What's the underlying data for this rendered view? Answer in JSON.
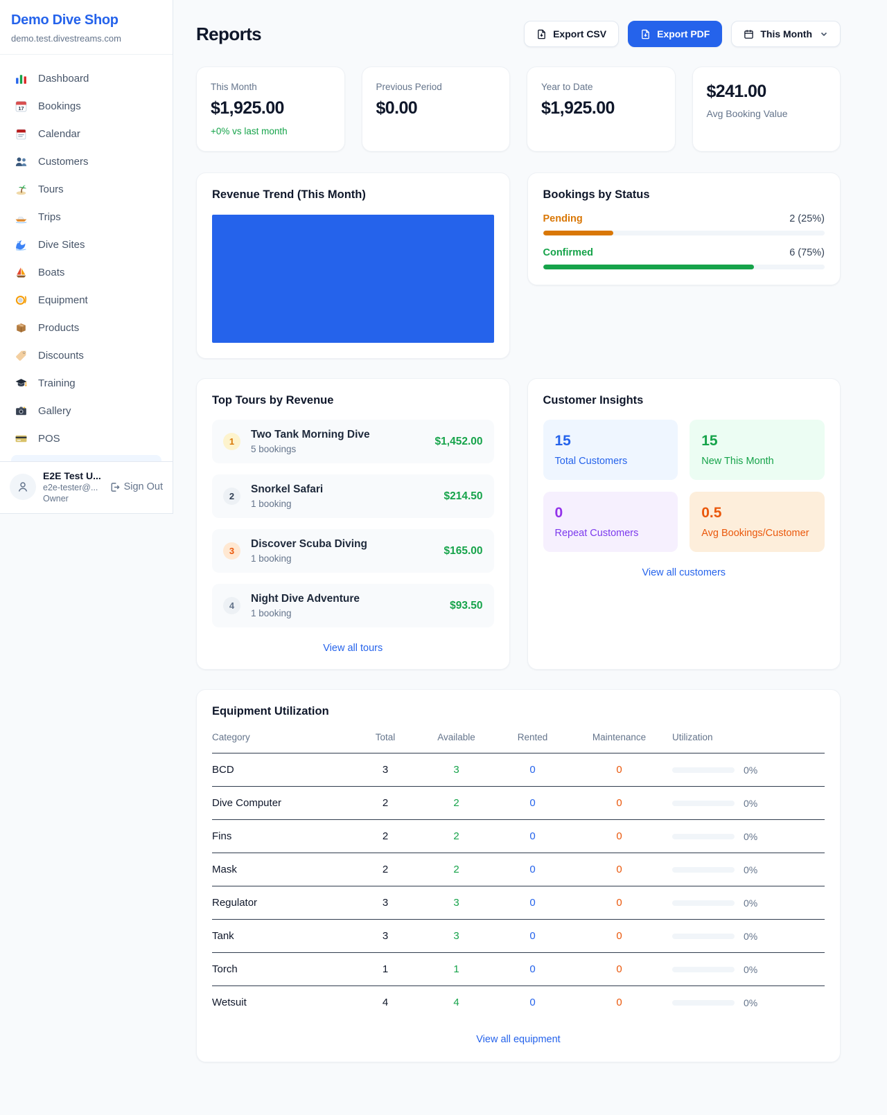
{
  "sidebar": {
    "shop_name": "Demo Dive Shop",
    "shop_domain": "demo.test.divestreams.com",
    "items": [
      {
        "label": "Dashboard",
        "icon": "bar-chart-icon"
      },
      {
        "label": "Bookings",
        "icon": "calendar-date-icon"
      },
      {
        "label": "Calendar",
        "icon": "calendar-pad-icon"
      },
      {
        "label": "Customers",
        "icon": "people-icon"
      },
      {
        "label": "Tours",
        "icon": "island-icon"
      },
      {
        "label": "Trips",
        "icon": "speedboat-icon"
      },
      {
        "label": "Dive Sites",
        "icon": "wave-icon"
      },
      {
        "label": "Boats",
        "icon": "sailboat-icon"
      },
      {
        "label": "Equipment",
        "icon": "dive-mask-icon"
      },
      {
        "label": "Products",
        "icon": "package-icon"
      },
      {
        "label": "Discounts",
        "icon": "tag-icon"
      },
      {
        "label": "Training",
        "icon": "graduation-cap-icon"
      },
      {
        "label": "Gallery",
        "icon": "camera-icon"
      },
      {
        "label": "POS",
        "icon": "credit-card-icon"
      }
    ],
    "user": {
      "name": "E2E Test U...",
      "email": "e2e-tester@...",
      "role": "Owner",
      "sign_out_label": "Sign Out"
    }
  },
  "header": {
    "title": "Reports",
    "export_csv_label": "Export CSV",
    "export_pdf_label": "Export PDF",
    "period_label": "This Month"
  },
  "stats": {
    "this_month": {
      "label": "This Month",
      "value": "$1,925.00",
      "delta": "+0% vs last month"
    },
    "previous_period": {
      "label": "Previous Period",
      "value": "$0.00"
    },
    "year_to_date": {
      "label": "Year to Date",
      "value": "$1,925.00"
    },
    "avg_booking": {
      "label": "Avg Booking Value",
      "value": "$241.00"
    }
  },
  "revenue_trend": {
    "title": "Revenue Trend (This Month)",
    "bar_color": "#2563eb"
  },
  "bookings_by_status": {
    "title": "Bookings by Status",
    "rows": [
      {
        "label": "Pending",
        "value": "2 (25%)",
        "pct": 25,
        "color": "#d97706"
      },
      {
        "label": "Confirmed",
        "value": "6 (75%)",
        "pct": 75,
        "color": "#16a34a"
      }
    ]
  },
  "top_tours": {
    "title": "Top Tours by Revenue",
    "view_all_label": "View all tours",
    "rows": [
      {
        "rank": "1",
        "name": "Two Tank Morning Dive",
        "bookings": "5 bookings",
        "revenue": "$1,452.00"
      },
      {
        "rank": "2",
        "name": "Snorkel Safari",
        "bookings": "1 booking",
        "revenue": "$214.50"
      },
      {
        "rank": "3",
        "name": "Discover Scuba Diving",
        "bookings": "1 booking",
        "revenue": "$165.00"
      },
      {
        "rank": "4",
        "name": "Night Dive Adventure",
        "bookings": "1 booking",
        "revenue": "$93.50"
      }
    ]
  },
  "customer_insights": {
    "title": "Customer Insights",
    "view_all_label": "View all customers",
    "tiles": [
      {
        "value": "15",
        "label": "Total Customers",
        "theme": "blue"
      },
      {
        "value": "15",
        "label": "New This Month",
        "theme": "green"
      },
      {
        "value": "0",
        "label": "Repeat Customers",
        "theme": "purple"
      },
      {
        "value": "0.5",
        "label": "Avg Bookings/Customer",
        "theme": "orange"
      }
    ]
  },
  "equipment": {
    "title": "Equipment Utilization",
    "view_all_label": "View all equipment",
    "columns": {
      "category": "Category",
      "total": "Total",
      "available": "Available",
      "rented": "Rented",
      "maintenance": "Maintenance",
      "utilization": "Utilization"
    },
    "rows": [
      {
        "category": "BCD",
        "total": "3",
        "available": "3",
        "rented": "0",
        "maintenance": "0",
        "utilization": "0%",
        "pct": 0
      },
      {
        "category": "Dive Computer",
        "total": "2",
        "available": "2",
        "rented": "0",
        "maintenance": "0",
        "utilization": "0%",
        "pct": 0
      },
      {
        "category": "Fins",
        "total": "2",
        "available": "2",
        "rented": "0",
        "maintenance": "0",
        "utilization": "0%",
        "pct": 0
      },
      {
        "category": "Mask",
        "total": "2",
        "available": "2",
        "rented": "0",
        "maintenance": "0",
        "utilization": "0%",
        "pct": 0
      },
      {
        "category": "Regulator",
        "total": "3",
        "available": "3",
        "rented": "0",
        "maintenance": "0",
        "utilization": "0%",
        "pct": 0
      },
      {
        "category": "Tank",
        "total": "3",
        "available": "3",
        "rented": "0",
        "maintenance": "0",
        "utilization": "0%",
        "pct": 0
      },
      {
        "category": "Torch",
        "total": "1",
        "available": "1",
        "rented": "0",
        "maintenance": "0",
        "utilization": "0%",
        "pct": 0
      },
      {
        "category": "Wetsuit",
        "total": "4",
        "available": "4",
        "rented": "0",
        "maintenance": "0",
        "utilization": "0%",
        "pct": 0
      }
    ]
  },
  "colors": {
    "accent": "#2563eb",
    "green": "#16a34a",
    "pending_orange": "#d97706",
    "maintenance_orange": "#ea580c",
    "purple": "#9333ea"
  }
}
